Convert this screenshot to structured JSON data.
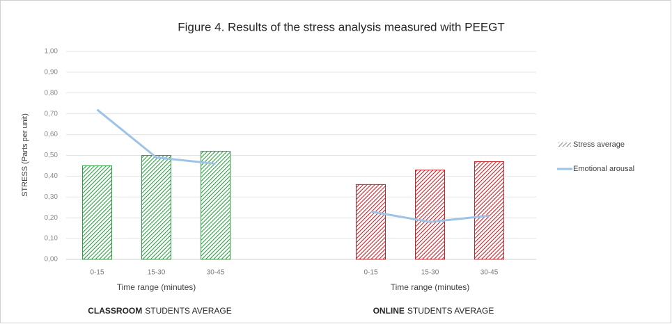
{
  "chart_data": {
    "type": "bar",
    "title": "Figure 4. Results of the stress analysis measured with PEEGT",
    "ylabel": "STRESS (Parts per unit)",
    "ylim": [
      0,
      1
    ],
    "yticks": [
      {
        "value": 0,
        "label": "0,00"
      },
      {
        "value": 0.1,
        "label": "0,10"
      },
      {
        "value": 0.2,
        "label": "0,20"
      },
      {
        "value": 0.3,
        "label": "0,30"
      },
      {
        "value": 0.4,
        "label": "0,40"
      },
      {
        "value": 0.5,
        "label": "0,50"
      },
      {
        "value": 0.6,
        "label": "0,60"
      },
      {
        "value": 0.7,
        "label": "0,70"
      },
      {
        "value": 0.8,
        "label": "0,80"
      },
      {
        "value": 0.9,
        "label": "0,90"
      },
      {
        "value": 1,
        "label": "1,00"
      }
    ],
    "grid": true,
    "legend_position": "right",
    "series": [
      {
        "name": "Stress average",
        "type": "bar",
        "color": "#8c8c8c"
      },
      {
        "name": "Emotional arousal",
        "type": "line",
        "color": "#9dc3e6"
      }
    ],
    "groups": [
      {
        "label_bold": "CLASSROOM",
        "label": "STUDENTS AVERAGE",
        "xlabel": "Time range (minutes)",
        "color": "#2f9e44",
        "categories": [
          "0-15",
          "15-30",
          "30-45"
        ],
        "series": [
          {
            "values": [
              0.45,
              0.5,
              0.52
            ]
          },
          {
            "values": [
              0.72,
              0.49,
              0.46
            ]
          }
        ]
      },
      {
        "label_bold": "ONLINE",
        "label": "STUDENTS AVERAGE",
        "xlabel": "Time range (minutes)",
        "color": "#c8242c",
        "categories": [
          "0-15",
          "15-30",
          "30-45"
        ],
        "series": [
          {
            "values": [
              0.36,
              0.43,
              0.47
            ]
          },
          {
            "values": [
              0.23,
              0.18,
              0.21
            ]
          }
        ]
      }
    ]
  }
}
